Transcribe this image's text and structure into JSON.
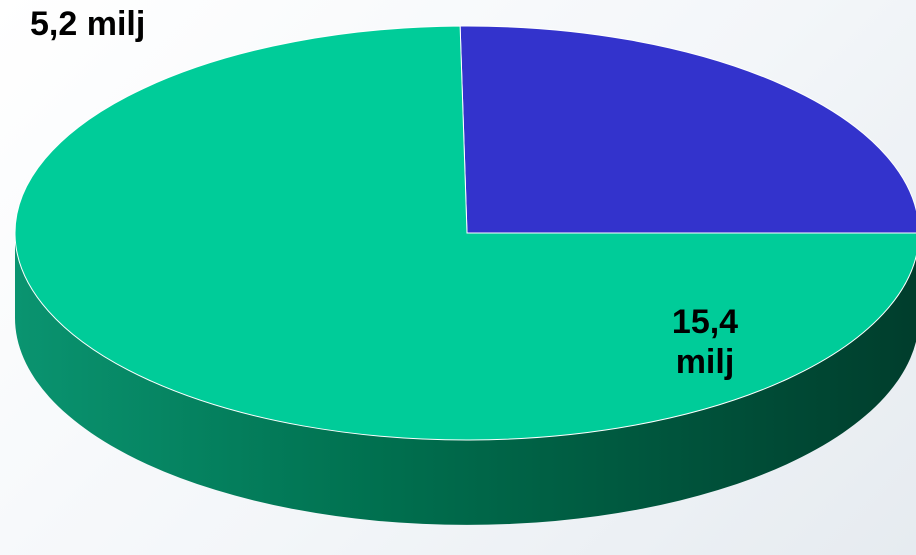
{
  "chart_data": {
    "type": "pie",
    "title": "",
    "start_angle_deg": 0,
    "direction": "counterclockwise",
    "three_d": true,
    "slices": [
      {
        "value": 5.2,
        "label": "5,2 milj",
        "color": "#3333cc"
      },
      {
        "value": 15.4,
        "label": "15,4 milj",
        "color": "#00cc99"
      }
    ],
    "side_colors": {
      "light": "#0a9470",
      "dark": "#003d2c"
    }
  }
}
